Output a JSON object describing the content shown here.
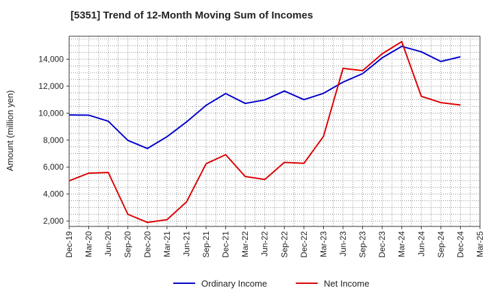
{
  "chart_data": {
    "type": "line",
    "title": "[5351]  Trend of 12-Month Moving Sum of Incomes",
    "xlabel": "",
    "ylabel": "Amount (million yen)",
    "ylim": [
      1600,
      15700
    ],
    "yticks": [
      2000,
      4000,
      6000,
      8000,
      10000,
      12000,
      14000
    ],
    "ytick_labels": [
      "2,000",
      "4,000",
      "6,000",
      "8,000",
      "10,000",
      "12,000",
      "14,000"
    ],
    "categories": [
      "Dec-19",
      "Mar-20",
      "Jun-20",
      "Sep-20",
      "Dec-20",
      "Mar-21",
      "Jun-21",
      "Sep-21",
      "Dec-21",
      "Mar-22",
      "Jun-22",
      "Sep-22",
      "Dec-22",
      "Mar-23",
      "Jun-23",
      "Sep-23",
      "Dec-23",
      "Mar-24",
      "Jun-24",
      "Sep-24",
      "Dec-24",
      "Mar-25"
    ],
    "grid": true,
    "legend_position": "bottom",
    "series": [
      {
        "name": "Ordinary Income",
        "color": "#0000cc",
        "values": [
          9870,
          9850,
          9400,
          7980,
          7380,
          8250,
          9350,
          10580,
          11450,
          10720,
          10980,
          11640,
          11000,
          11470,
          12300,
          12930,
          14100,
          14950,
          14550,
          13830,
          14180,
          null
        ]
      },
      {
        "name": "Net Income",
        "color": "#dd0000",
        "values": [
          4980,
          5550,
          5600,
          2500,
          1900,
          2100,
          3420,
          6250,
          6920,
          5300,
          5080,
          6350,
          6280,
          8280,
          13320,
          13150,
          14400,
          15300,
          11250,
          10780,
          10600,
          null
        ]
      }
    ]
  }
}
